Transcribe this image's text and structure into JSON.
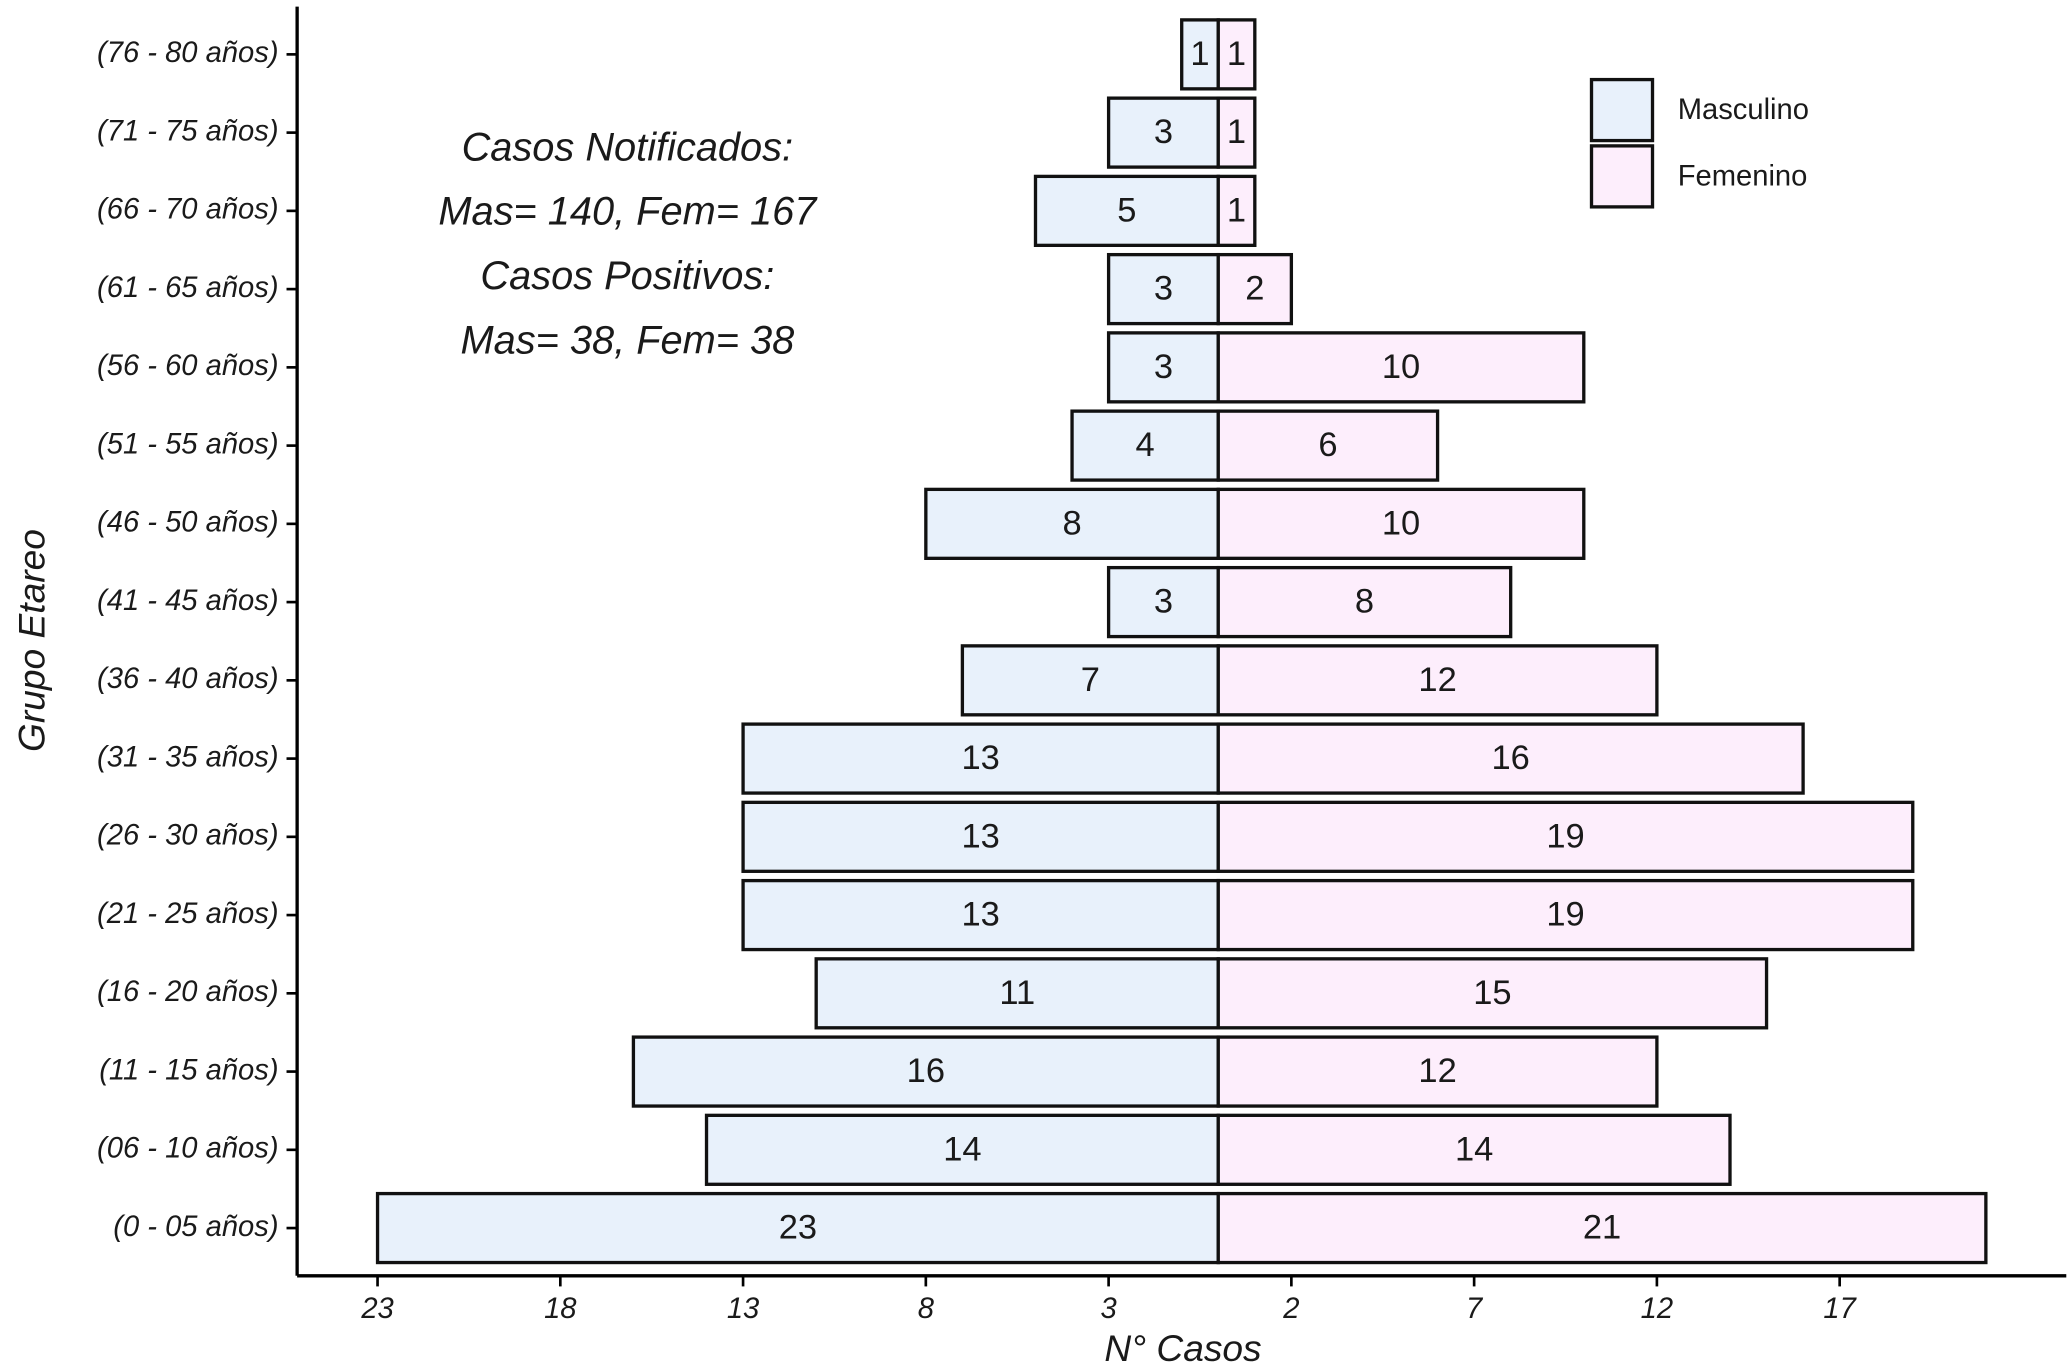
{
  "chart_data": {
    "type": "pyramid",
    "xlabel": "N° Casos",
    "ylabel": "Grupo Etareo",
    "categories": [
      "(0 - 05 años)",
      "(06 - 10 años)",
      "(11 - 15 años)",
      "(16 - 20 años)",
      "(21 - 25 años)",
      "(26 - 30 años)",
      "(31 - 35 años)",
      "(36 - 40 años)",
      "(41 - 45 años)",
      "(46 - 50 años)",
      "(51 - 55 años)",
      "(56 - 60 años)",
      "(61 - 65 años)",
      "(66 - 70 años)",
      "(71 - 75 años)",
      "(76 - 80 años)"
    ],
    "series": [
      {
        "name": "Masculino",
        "color": "#e8f1fb",
        "values": [
          -23,
          -14,
          -16,
          -11,
          -13,
          -13,
          -13,
          -7,
          -3,
          -8,
          -4,
          -3,
          -3,
          -5,
          -3,
          -1
        ],
        "value_labels": [
          "23",
          "14",
          "16",
          "11",
          "13",
          "13",
          "13",
          "7",
          "3",
          "8",
          "4",
          "3",
          "3",
          "5",
          "3",
          "1"
        ]
      },
      {
        "name": "Femenino",
        "color": "#fdeefc",
        "values": [
          21,
          14,
          12,
          15,
          19,
          19,
          16,
          12,
          8,
          10,
          6,
          10,
          2,
          1,
          1,
          1
        ]
      }
    ],
    "xlim": [
      -25.2,
      23.2
    ],
    "xticks": [
      {
        "value": -23,
        "label": "23"
      },
      {
        "value": -18,
        "label": "18"
      },
      {
        "value": -13,
        "label": "13"
      },
      {
        "value": -8,
        "label": "8"
      },
      {
        "value": -3,
        "label": "3"
      },
      2,
      7,
      12,
      17
    ],
    "legend": "top-right",
    "annotations": [
      "Casos Notificados:",
      "Mas= 140,  Fem= 167",
      "Casos Positivos:",
      "Mas= 38,  Fem= 38"
    ]
  }
}
